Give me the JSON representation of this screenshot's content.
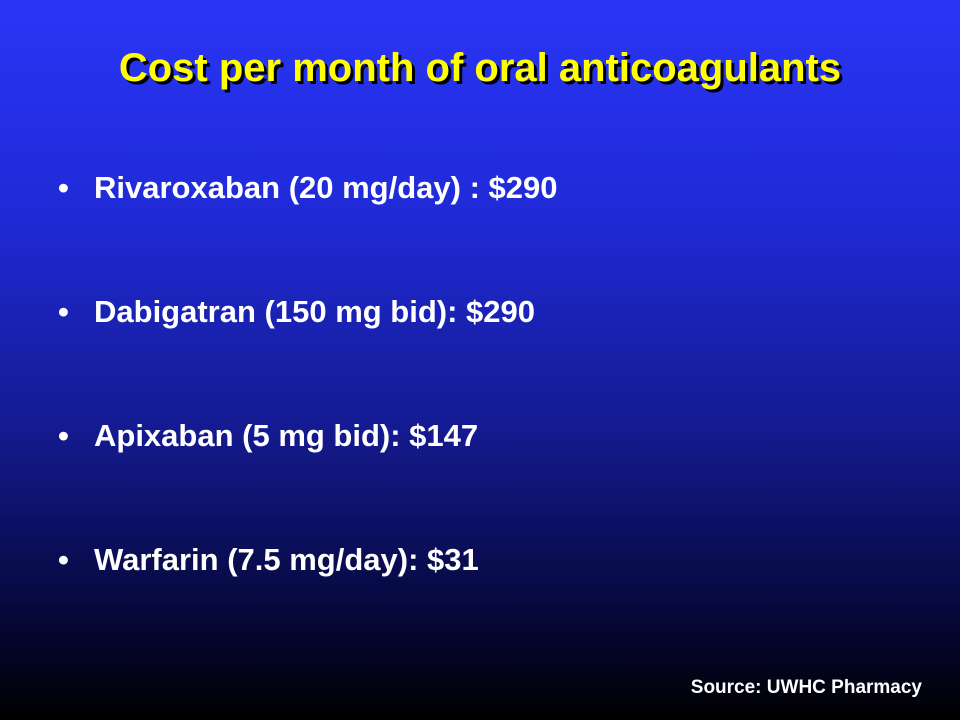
{
  "title": "Cost per month of oral anticoagulants",
  "bullets": [
    {
      "symbol": "•",
      "text": "Rivaroxaban (20 mg/day) : $290"
    },
    {
      "symbol": "•",
      "text": "Dabigatran (150 mg bid): $290"
    },
    {
      "symbol": "•",
      "text": "Apixaban (5 mg bid): $147"
    },
    {
      "symbol": "•",
      "text": "Warfarin (7.5 mg/day): $31"
    }
  ],
  "source": "Source: UWHC Pharmacy",
  "colors": {
    "title": "#ffff00",
    "text": "#ffffff",
    "background_top": "#2a35f7",
    "background_bottom": "#000000"
  }
}
